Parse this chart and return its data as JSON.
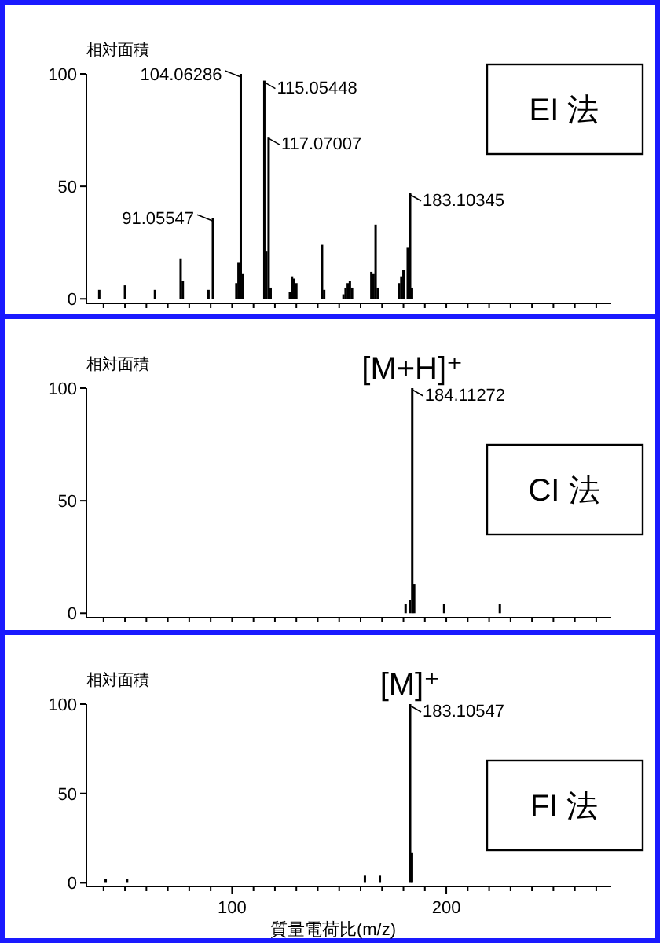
{
  "chart_data": [
    {
      "type": "bar",
      "title": "EI 法",
      "ylabel": "相対面積",
      "tick_labels": "y",
      "x": [
        38,
        50,
        64,
        76,
        77,
        89,
        91.05547,
        102,
        103,
        104.06286,
        105,
        115.05448,
        116,
        117.07007,
        118,
        127,
        128,
        129,
        130,
        142,
        143,
        152,
        153,
        154,
        155,
        156,
        165,
        166,
        167,
        168,
        178,
        179,
        180,
        182,
        183.10345,
        184
      ],
      "series": [
        {
          "color": "#000000",
          "values": [
            4,
            6,
            4,
            18,
            8,
            4,
            36,
            7,
            16,
            100,
            11,
            97,
            21,
            72,
            5,
            3,
            10,
            9,
            7,
            24,
            4,
            2,
            5,
            7,
            8,
            5,
            12,
            11,
            33,
            5,
            7,
            10,
            13,
            23,
            47,
            5
          ]
        }
      ],
      "xlim": [
        32,
        277
      ],
      "xticks": [
        {
          "value": 40,
          "label": null
        },
        {
          "value": 50,
          "label": null
        },
        {
          "value": 60,
          "label": null
        },
        {
          "value": 70,
          "label": null
        },
        {
          "value": 80,
          "label": null
        },
        {
          "value": 90,
          "label": null
        },
        {
          "value": 100,
          "label": null
        },
        {
          "value": 110,
          "label": null
        },
        {
          "value": 120,
          "label": null
        },
        {
          "value": 130,
          "label": null
        },
        {
          "value": 140,
          "label": null
        },
        {
          "value": 150,
          "label": null
        },
        {
          "value": 160,
          "label": null
        },
        {
          "value": 170,
          "label": null
        },
        {
          "value": 180,
          "label": null
        },
        {
          "value": 190,
          "label": null
        },
        {
          "value": 200,
          "label": null
        },
        {
          "value": 210,
          "label": null
        },
        {
          "value": 220,
          "label": null
        },
        {
          "value": 230,
          "label": null
        },
        {
          "value": 240,
          "label": null
        },
        {
          "value": 250,
          "label": null
        },
        {
          "value": 260,
          "label": null
        },
        {
          "value": 270,
          "label": null
        }
      ],
      "ylim": [
        -2,
        100
      ],
      "yticks": [
        0,
        50,
        100
      ],
      "annotations": [
        {
          "text": "91.05547",
          "x": 91.05547,
          "y": 36
        },
        {
          "text": "104.06286",
          "x": 104.06286,
          "y": 100
        },
        {
          "text": "115.05448",
          "x": 115.05448,
          "y": 97
        },
        {
          "text": "117.07007",
          "x": 117.07007,
          "y": 72
        },
        {
          "text": "183.10345",
          "x": 183.10345,
          "y": 47
        }
      ]
    },
    {
      "type": "bar",
      "title": "CI 法",
      "ylabel": "相対面積",
      "tick_labels": "y",
      "x": [
        181,
        183,
        184.11272,
        185,
        199,
        225
      ],
      "series": [
        {
          "color": "#000000",
          "values": [
            4,
            6,
            100,
            13,
            4,
            4
          ]
        }
      ],
      "xlim": [
        32,
        277
      ],
      "xticks": [
        {
          "value": 40,
          "label": null
        },
        {
          "value": 50,
          "label": null
        },
        {
          "value": 60,
          "label": null
        },
        {
          "value": 70,
          "label": null
        },
        {
          "value": 80,
          "label": null
        },
        {
          "value": 90,
          "label": null
        },
        {
          "value": 100,
          "label": null
        },
        {
          "value": 110,
          "label": null
        },
        {
          "value": 120,
          "label": null
        },
        {
          "value": 130,
          "label": null
        },
        {
          "value": 140,
          "label": null
        },
        {
          "value": 150,
          "label": null
        },
        {
          "value": 160,
          "label": null
        },
        {
          "value": 170,
          "label": null
        },
        {
          "value": 180,
          "label": null
        },
        {
          "value": 190,
          "label": null
        },
        {
          "value": 200,
          "label": null
        },
        {
          "value": 210,
          "label": null
        },
        {
          "value": 220,
          "label": null
        },
        {
          "value": 230,
          "label": null
        },
        {
          "value": 240,
          "label": null
        },
        {
          "value": 250,
          "label": null
        },
        {
          "value": 260,
          "label": null
        },
        {
          "value": 270,
          "label": null
        }
      ],
      "ylim": [
        -2,
        100
      ],
      "yticks": [
        0,
        50,
        100
      ],
      "annotations": [
        "[M+H]⁺",
        {
          "text": "184.11272",
          "x": 184.11272,
          "y": 100
        }
      ]
    },
    {
      "type": "bar",
      "title": "FI 法",
      "ylabel": "相対面積",
      "xlabel": "質量電荷比(m/z)",
      "x": [
        41,
        51,
        162,
        169,
        183.10547,
        184
      ],
      "series": [
        {
          "color": "#000000",
          "values": [
            2,
            2,
            4,
            4,
            100,
            17
          ]
        }
      ],
      "xlim": [
        32,
        277
      ],
      "xticks": [
        {
          "value": 40,
          "label": null
        },
        {
          "value": 50,
          "label": null
        },
        {
          "value": 60,
          "label": null
        },
        {
          "value": 70,
          "label": null
        },
        {
          "value": 80,
          "label": null
        },
        {
          "value": 90,
          "label": null
        },
        100,
        {
          "value": 110,
          "label": null
        },
        {
          "value": 120,
          "label": null
        },
        {
          "value": 130,
          "label": null
        },
        {
          "value": 140,
          "label": null
        },
        {
          "value": 150,
          "label": null
        },
        {
          "value": 160,
          "label": null
        },
        {
          "value": 170,
          "label": null
        },
        {
          "value": 180,
          "label": null
        },
        {
          "value": 190,
          "label": null
        },
        200,
        {
          "value": 210,
          "label": null
        },
        {
          "value": 220,
          "label": null
        },
        {
          "value": 230,
          "label": null
        },
        {
          "value": 240,
          "label": null
        },
        {
          "value": 250,
          "label": null
        },
        {
          "value": 260,
          "label": null
        },
        {
          "value": 270,
          "label": null
        }
      ],
      "ylim": [
        -2,
        100
      ],
      "yticks": [
        0,
        50,
        100
      ],
      "annotations": [
        "[M]⁺",
        {
          "text": "183.10547",
          "x": 183.10547,
          "y": 100
        }
      ]
    }
  ]
}
